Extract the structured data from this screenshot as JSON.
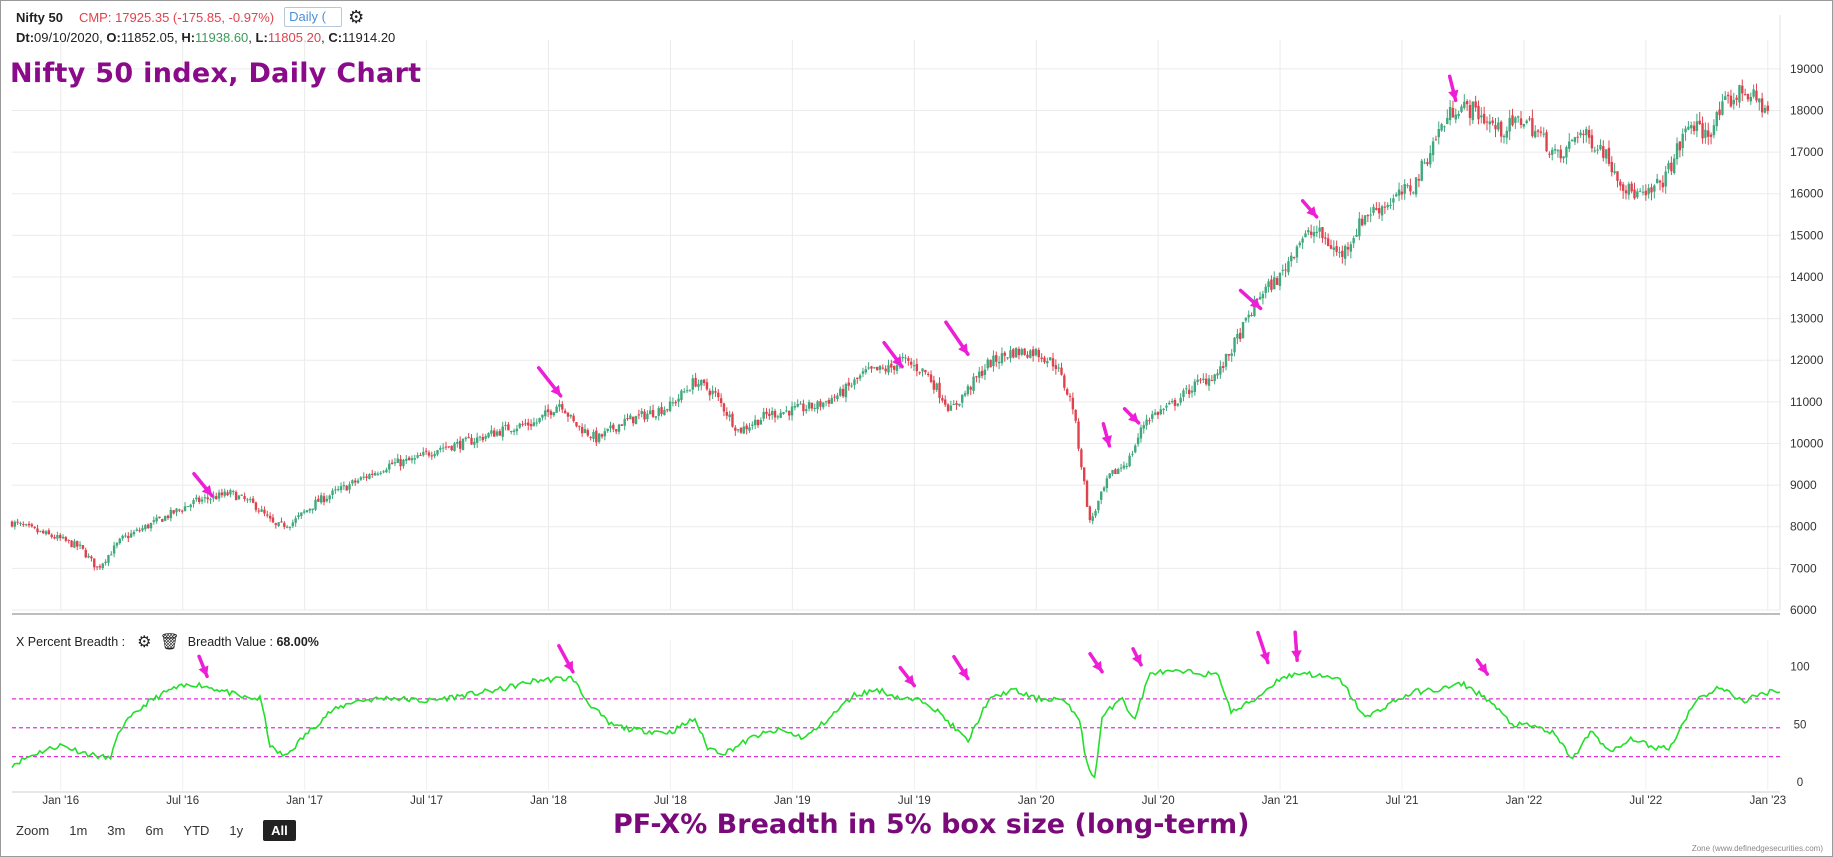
{
  "header": {
    "symbol": "Nifty 50",
    "cmp": "CMP: 17925.35 (-175.85, -0.97%)",
    "timeframe": "Daily (",
    "ohlc": {
      "dt_label": "Dt:",
      "dt": "09/10/2020",
      "o_label": "O:",
      "o": "11852.05",
      "h_label": "H:",
      "h": "11938.60",
      "l_label": "L:",
      "l": "11805.20",
      "c_label": "C:",
      "c": "11914.20"
    }
  },
  "annotations": {
    "main_title": "Nifty 50 index, Daily Chart",
    "breadth_title": "PF-X% Breadth in 5% box size (long-term)",
    "arrow_color": "#ee1ed6"
  },
  "breadth_header": {
    "label": "X Percent Breadth :",
    "value_label": "Breadth Value :",
    "value": "68.00%"
  },
  "zoom": {
    "label": "Zoom",
    "options": [
      "1m",
      "3m",
      "6m",
      "YTD",
      "1y",
      "All"
    ],
    "active": "All"
  },
  "credit": "Zone (www.definedgesecurities.com)",
  "chart_data": [
    {
      "type": "candlestick",
      "title": "Nifty 50 index, Daily Chart",
      "colors": {
        "up": "#3fa87c",
        "down": "#e0424d"
      },
      "y_ticks": [
        6000,
        7000,
        8000,
        9000,
        10000,
        11000,
        12000,
        13000,
        14000,
        15000,
        16000,
        17000,
        18000,
        19000
      ],
      "ylim": [
        6000,
        19500
      ],
      "x_ticks": [
        "Jan '16",
        "Jul '16",
        "Jan '17",
        "Jul '17",
        "Jan '18",
        "Jul '18",
        "Jan '19",
        "Jul '19",
        "Jan '20",
        "Jul '20",
        "Jan '21",
        "Jul '21",
        "Jan '22",
        "Jul '22",
        "Jan '23"
      ],
      "xlim": [
        2015.8,
        2023.05
      ],
      "series": [
        {
          "x": [
            2015.8,
            2015.92,
            2016.0,
            2016.08,
            2016.15,
            2016.25,
            2016.35,
            2016.45,
            2016.55,
            2016.62,
            2016.7,
            2016.8,
            2016.88,
            2016.95,
            2017.05,
            2017.15,
            2017.25,
            2017.35,
            2017.45,
            2017.55,
            2017.65,
            2017.75,
            2017.85,
            2017.95,
            2018.05,
            2018.1,
            2018.2,
            2018.3,
            2018.4,
            2018.5,
            2018.6,
            2018.68,
            2018.78,
            2018.9,
            2019.0,
            2019.1,
            2019.2,
            2019.3,
            2019.4,
            2019.45,
            2019.55,
            2019.65,
            2019.72,
            2019.8,
            2019.9,
            2020.0,
            2020.08,
            2020.15,
            2020.22,
            2020.3,
            2020.38,
            2020.45,
            2020.55,
            2020.65,
            2020.75,
            2020.85,
            2020.92,
            2021.0,
            2021.08,
            2021.15,
            2021.25,
            2021.35,
            2021.45,
            2021.55,
            2021.65,
            2021.72,
            2021.8,
            2021.9,
            2022.0,
            2022.08,
            2022.15,
            2022.22,
            2022.32,
            2022.42,
            2022.5,
            2022.58,
            2022.68,
            2022.75,
            2022.82,
            2022.9,
            2023.0
          ],
          "y": [
            8100,
            7850,
            7700,
            7500,
            7000,
            7700,
            8000,
            8300,
            8600,
            8700,
            8800,
            8500,
            8000,
            8100,
            8600,
            8900,
            9200,
            9500,
            9600,
            9900,
            10000,
            10200,
            10400,
            10500,
            11000,
            10500,
            10100,
            10500,
            10700,
            10900,
            11500,
            11200,
            10300,
            10700,
            10800,
            10900,
            11200,
            11700,
            11800,
            12000,
            11700,
            10800,
            11300,
            11900,
            12200,
            12200,
            11900,
            10900,
            8100,
            9200,
            9600,
            10600,
            10900,
            11400,
            11700,
            12800,
            13600,
            14000,
            14900,
            15100,
            14500,
            15500,
            15800,
            16200,
            17500,
            18100,
            18000,
            17500,
            17800,
            17300,
            16800,
            17500,
            17100,
            16100,
            15900,
            16400,
            17700,
            17400,
            18100,
            18500,
            18000
          ]
        }
      ]
    },
    {
      "type": "line",
      "title": "X Percent Breadth",
      "color": "#22e02a",
      "y_ticks": [
        0,
        50,
        100
      ],
      "ylim": [
        0,
        110
      ],
      "reference_lines": [
        72,
        47,
        22
      ],
      "reference_color": "#e030d8",
      "series": [
        {
          "name": "Breadth Value",
          "x": [
            2015.8,
            2015.9,
            2016.0,
            2016.1,
            2016.2,
            2016.25,
            2016.35,
            2016.45,
            2016.55,
            2016.65,
            2016.75,
            2016.82,
            2016.86,
            2016.92,
            2017.0,
            2017.1,
            2017.2,
            2017.35,
            2017.5,
            2017.65,
            2017.8,
            2017.95,
            2018.1,
            2018.15,
            2018.25,
            2018.35,
            2018.5,
            2018.6,
            2018.65,
            2018.72,
            2018.85,
            2018.95,
            2019.05,
            2019.15,
            2019.25,
            2019.35,
            2019.45,
            2019.55,
            2019.65,
            2019.72,
            2019.8,
            2019.9,
            2020.0,
            2020.1,
            2020.18,
            2020.2,
            2020.24,
            2020.27,
            2020.35,
            2020.4,
            2020.43,
            2020.47,
            2020.55,
            2020.65,
            2020.75,
            2020.8,
            2020.9,
            2021.0,
            2021.1,
            2021.15,
            2021.25,
            2021.35,
            2021.45,
            2021.55,
            2021.65,
            2021.75,
            2021.85,
            2021.95,
            2022.05,
            2022.12,
            2022.2,
            2022.28,
            2022.35,
            2022.45,
            2022.52,
            2022.6,
            2022.7,
            2022.8,
            2022.9,
            2023.0,
            2023.05
          ],
          "y": [
            15,
            25,
            32,
            25,
            20,
            48,
            68,
            80,
            85,
            80,
            73,
            72,
            30,
            22,
            40,
            60,
            70,
            73,
            70,
            75,
            80,
            88,
            90,
            72,
            50,
            45,
            43,
            55,
            30,
            25,
            40,
            45,
            38,
            55,
            75,
            80,
            72,
            70,
            50,
            35,
            70,
            80,
            72,
            72,
            55,
            20,
            3,
            55,
            75,
            52,
            72,
            95,
            95,
            95,
            92,
            60,
            72,
            90,
            95,
            92,
            88,
            55,
            68,
            78,
            80,
            85,
            72,
            50,
            48,
            42,
            20,
            45,
            25,
            38,
            30,
            30,
            70,
            82,
            70,
            78,
            80
          ]
        }
      ]
    }
  ]
}
